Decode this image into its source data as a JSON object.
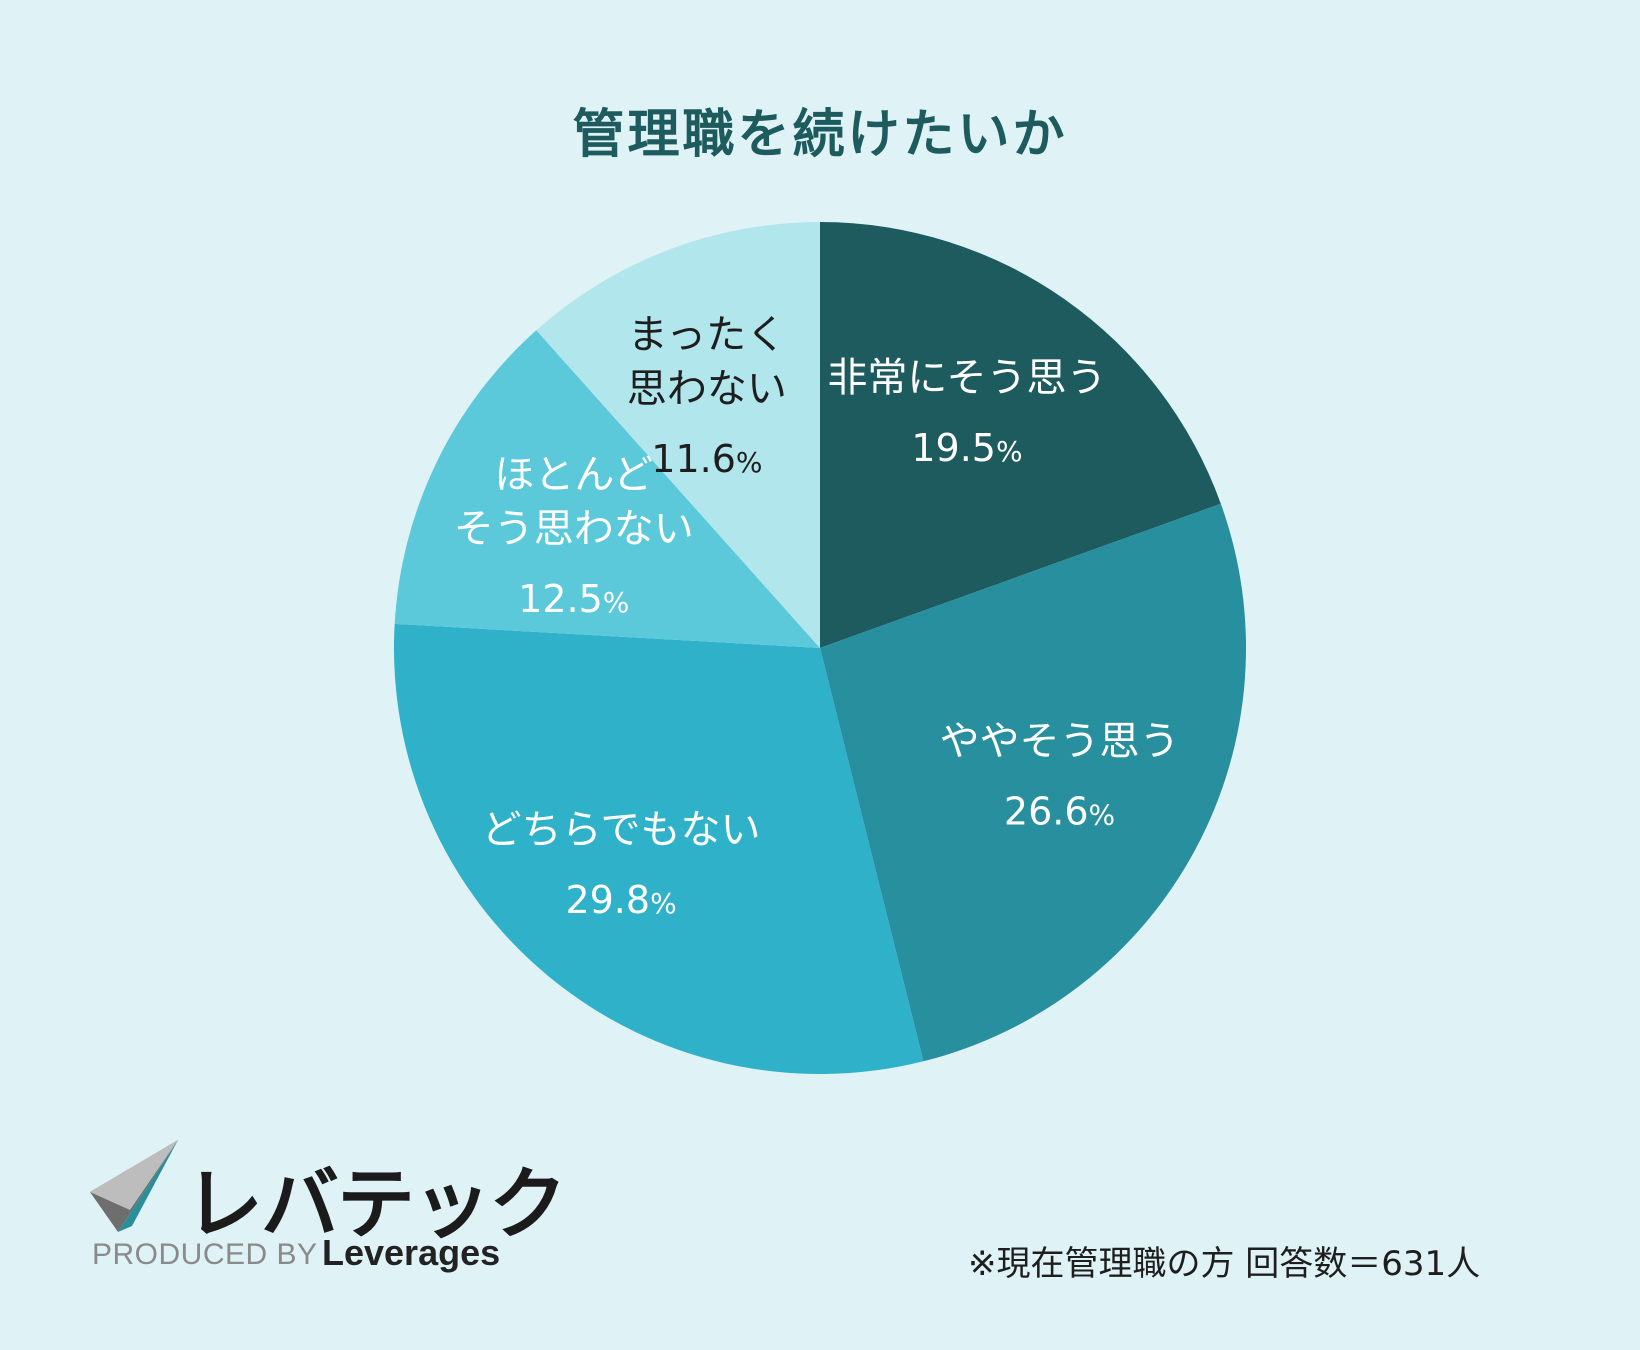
{
  "chart_data": {
    "type": "pie",
    "title": "管理職を続けたいか",
    "start": "top",
    "direction": "clockwise",
    "slices": [
      {
        "label_lines": [
          "非常にそう思う"
        ],
        "value": 19.5,
        "value_text": "19.5",
        "unit": "%",
        "color": "#1e5b5e",
        "text_color": "#ffffff"
      },
      {
        "label_lines": [
          "ややそう思う"
        ],
        "value": 26.6,
        "value_text": "26.6",
        "unit": "%",
        "color": "#278f9d",
        "text_color": "#ffffff"
      },
      {
        "label_lines": [
          "どちらでもない"
        ],
        "value": 29.8,
        "value_text": "29.8",
        "unit": "%",
        "color": "#2eb1c9",
        "text_color": "#ffffff"
      },
      {
        "label_lines": [
          "ほとんど",
          "そう思わない"
        ],
        "value": 12.5,
        "value_text": "12.5",
        "unit": "%",
        "color": "#5bc9da",
        "text_color": "#ffffff"
      },
      {
        "label_lines": [
          "まったく",
          "思わない"
        ],
        "value": 11.6,
        "value_text": "11.6",
        "unit": "%",
        "color": "#b1e6ed",
        "text_color": "#1e1e1e"
      }
    ]
  },
  "footer": {
    "brand": "レバテック",
    "produced_by": "PRODUCED BY",
    "company": "Leverages",
    "note": "※現在管理職の方 回答数＝631人"
  }
}
